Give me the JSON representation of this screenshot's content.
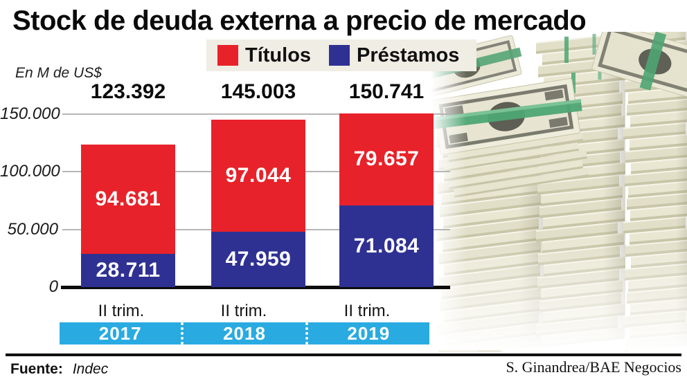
{
  "title": "Stock de deuda externa a precio de mercado",
  "unit_label": "En M de US$",
  "legend": [
    {
      "label": "Títulos",
      "color": "#E8222A"
    },
    {
      "label": "Préstamos",
      "color": "#2F3192"
    }
  ],
  "footer": {
    "source_label": "Fuente:",
    "source_value": "Indec",
    "credit": "S. Ginandrea/BAE Negocios"
  },
  "colors": {
    "titulos": "#E8222A",
    "prestamos": "#2F3192",
    "year_band": "#29ABE2",
    "legend_bg": "#EFEDE4",
    "gridline": "#b6b6b6"
  },
  "chart_data": {
    "type": "bar",
    "stacked": true,
    "title": "Stock de deuda externa a precio de mercado",
    "ylabel": "En M de US$",
    "categories": [
      "II trim.",
      "II trim.",
      "II trim."
    ],
    "years": [
      "2017",
      "2018",
      "2019"
    ],
    "series": [
      {
        "name": "Préstamos",
        "color": "#2F3192",
        "values": [
          28711,
          47959,
          71084
        ],
        "labels": [
          "28.711",
          "47.959",
          "71.084"
        ]
      },
      {
        "name": "Títulos",
        "color": "#E8222A",
        "values": [
          94681,
          97044,
          79657
        ],
        "labels": [
          "94.681",
          "97.044",
          "79.657"
        ]
      }
    ],
    "totals": [
      123392,
      145003,
      150741
    ],
    "total_labels": [
      "123.392",
      "145.003",
      "150.741"
    ],
    "ylim": [
      0,
      155000
    ],
    "yticks": [
      {
        "value": 0,
        "label": "0"
      },
      {
        "value": 50000,
        "label": "50.000"
      },
      {
        "value": 100000,
        "label": "100.000"
      },
      {
        "value": 150000,
        "label": "150.000"
      }
    ],
    "grid": true,
    "legend_position": "top"
  }
}
